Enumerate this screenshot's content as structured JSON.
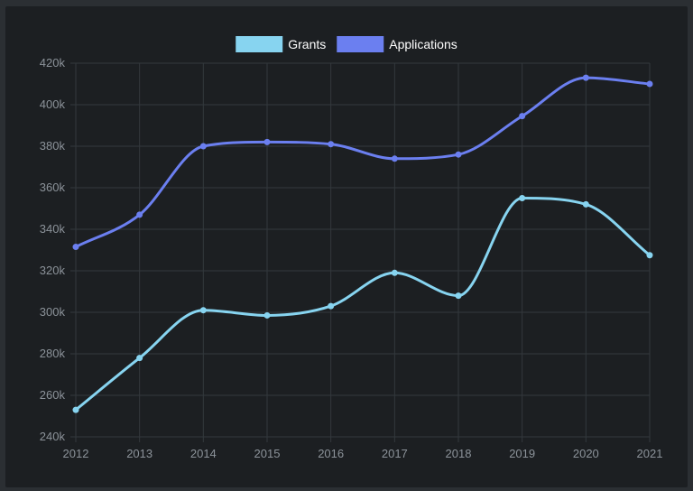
{
  "colors": {
    "background": "#1c1f22",
    "grid": "#33383d",
    "tick_text": "#8c939a",
    "legend_text": "#ffffff"
  },
  "chart_data": {
    "type": "line",
    "x": [
      "2012",
      "2013",
      "2014",
      "2015",
      "2016",
      "2017",
      "2018",
      "2019",
      "2020",
      "2021"
    ],
    "series": [
      {
        "name": "Grants",
        "color": "#87d4f0",
        "values": [
          253000,
          278000,
          301000,
          298500,
          303000,
          319000,
          308000,
          355000,
          352000,
          327500
        ]
      },
      {
        "name": "Applications",
        "color": "#6b7ff0",
        "values": [
          331500,
          347000,
          380000,
          382000,
          381000,
          374000,
          376000,
          394500,
          413000,
          410000
        ]
      }
    ],
    "ylim": [
      240000,
      420000
    ],
    "y_ticks": [
      "240k",
      "260k",
      "280k",
      "300k",
      "320k",
      "340k",
      "360k",
      "380k",
      "400k",
      "420k"
    ],
    "y_tick_values": [
      240000,
      260000,
      280000,
      300000,
      320000,
      340000,
      360000,
      380000,
      400000,
      420000
    ],
    "grid": true,
    "legend": "top-center",
    "title": "",
    "xlabel": "",
    "ylabel": ""
  }
}
